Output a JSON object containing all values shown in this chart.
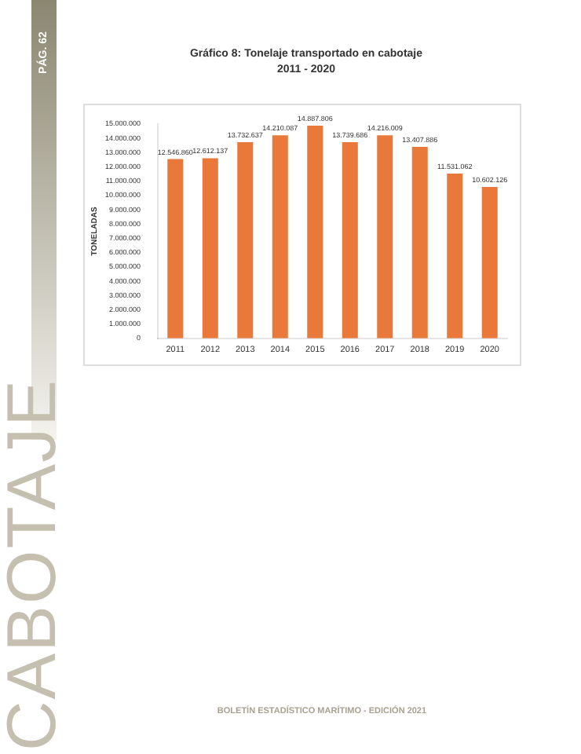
{
  "chart_data": {
    "type": "bar",
    "title": "Gráfico 8: Tonelaje transportado en cabotaje",
    "subtitle": "2011 - 2020",
    "ylabel": "TONELADAS",
    "categories": [
      "2011",
      "2012",
      "2013",
      "2014",
      "2015",
      "2016",
      "2017",
      "2018",
      "2019",
      "2020"
    ],
    "values": [
      12546860,
      12612137,
      13732637,
      14210087,
      14887806,
      13739686,
      14216009,
      13407886,
      11531062,
      10602126
    ],
    "value_labels": [
      "12.546.860",
      "12.612.137",
      "13.732.637",
      "14.210.087",
      "14.887.806",
      "13.739.686",
      "14.216.009",
      "13.407.886",
      "11.531.062",
      "10.602.126"
    ],
    "color": "#e8793a",
    "ylim": [
      0,
      15000000
    ],
    "yticks": [
      0,
      {
        "value": 1000000,
        "label": "1.000.000"
      },
      {
        "value": 2000000,
        "label": "2.000.000"
      },
      {
        "value": 3000000,
        "label": "3.000.000"
      },
      {
        "value": 4000000,
        "label": "4.000.000"
      },
      {
        "value": 5000000,
        "label": "5.000.000"
      },
      {
        "value": 6000000,
        "label": "6.000.000"
      },
      {
        "value": 7000000,
        "label": "7.000.000"
      },
      {
        "value": 8000000,
        "label": "8.000.000"
      },
      {
        "value": 9000000,
        "label": "9.000.000"
      },
      {
        "value": 10000000,
        "label": "10.000.000"
      },
      {
        "value": 11000000,
        "label": "11.000.000"
      },
      {
        "value": 12000000,
        "label": "12.000.000"
      },
      {
        "value": 13000000,
        "label": "13.000.000"
      },
      {
        "value": 14000000,
        "label": "14.000.000"
      },
      {
        "value": 15000000,
        "label": "15.000.000"
      }
    ],
    "grid": false,
    "legend": false,
    "annotations": [
      "PÁG. 62",
      "CABOTAJE",
      "BOLETÍN ESTADÍSTICO MARÍTIMO - EDICIÓN 2021"
    ]
  }
}
